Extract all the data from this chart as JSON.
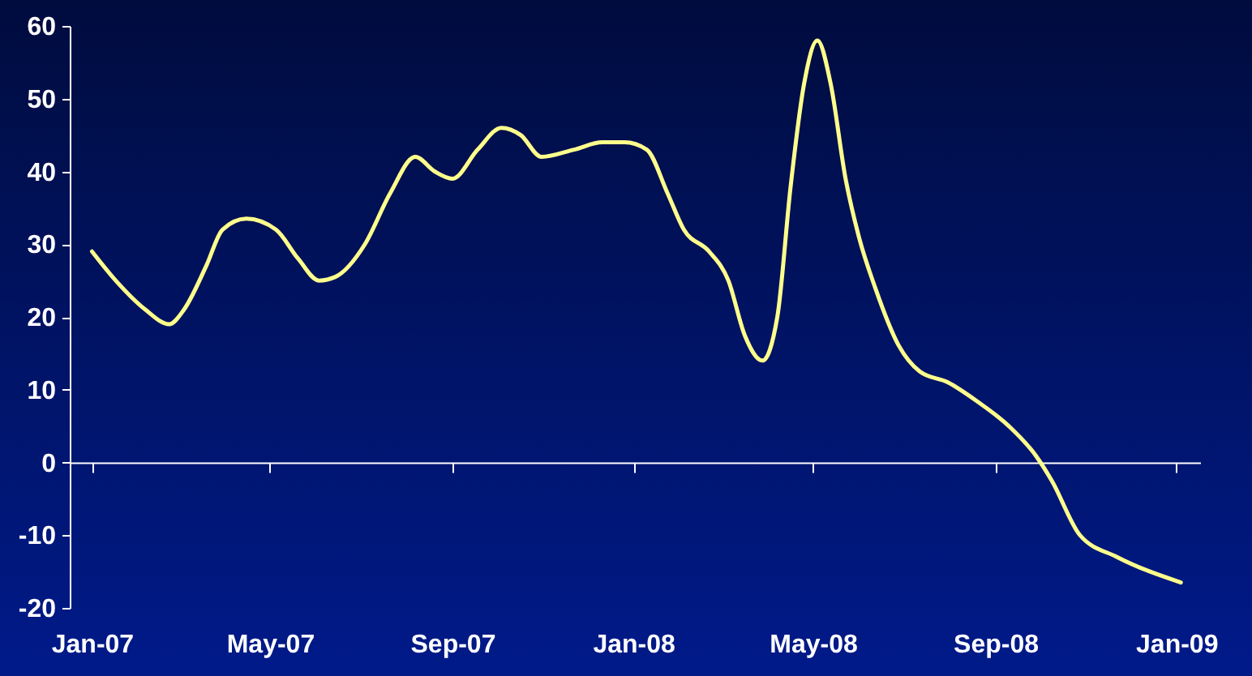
{
  "chart_data": {
    "type": "line",
    "x": [
      "2007-01-16",
      "2007-02-01",
      "2007-02-21",
      "2007-03-09",
      "2007-03-19",
      "2007-04-03",
      "2007-04-14",
      "2007-04-30",
      "2007-05-20",
      "2007-06-04",
      "2007-06-18",
      "2007-06-29",
      "2007-07-19",
      "2007-08-05",
      "2007-08-22",
      "2007-09-04",
      "2007-09-16",
      "2007-10-03",
      "2007-10-19",
      "2007-11-01",
      "2007-11-15",
      "2007-12-07",
      "2007-12-26",
      "2008-01-10",
      "2008-01-25",
      "2008-02-08",
      "2008-02-19",
      "2008-03-07",
      "2008-03-20",
      "2008-03-31",
      "2008-04-12",
      "2008-04-22",
      "2008-05-01",
      "2008-05-10",
      "2008-05-19",
      "2008-05-28",
      "2008-06-07",
      "2008-06-16",
      "2008-06-27",
      "2008-07-13",
      "2008-07-27",
      "2008-08-15",
      "2008-09-03",
      "2008-09-25",
      "2008-10-13",
      "2008-10-24",
      "2008-11-12",
      "2008-12-07",
      "2009-01-19"
    ],
    "series": [
      {
        "color": "#ffff8c",
        "values": [
          29,
          25,
          21,
          19,
          21,
          27,
          32,
          33.5,
          32,
          28,
          25,
          25.5,
          30,
          37,
          42,
          40,
          39,
          43,
          46,
          45,
          42,
          43,
          44,
          44,
          43,
          37,
          32,
          29,
          25,
          17.5,
          14,
          20,
          38,
          52,
          58,
          52,
          39,
          31,
          24,
          16,
          12.5,
          11,
          8.5,
          5,
          1,
          -2.5,
          -10,
          -13,
          -16.5
        ]
      }
    ],
    "xlim": [
      "2007-01-01",
      "2009-02-01"
    ],
    "xticks": [
      {
        "value": "2007-01-16",
        "label": "Jan-07"
      },
      {
        "value": "2007-05-16",
        "label": "May-07"
      },
      {
        "value": "2007-09-16",
        "label": "Sep-07"
      },
      {
        "value": "2008-01-16",
        "label": "Jan-08"
      },
      {
        "value": "2008-05-16",
        "label": "May-08"
      },
      {
        "value": "2008-09-16",
        "label": "Sep-08"
      },
      {
        "value": "2009-01-16",
        "label": "Jan-09"
      }
    ],
    "ylim": [
      -20,
      60
    ],
    "yticks": [
      -20,
      -10,
      0,
      10,
      20,
      30,
      40,
      50,
      60
    ],
    "marker": "none",
    "line_style": "solid"
  }
}
